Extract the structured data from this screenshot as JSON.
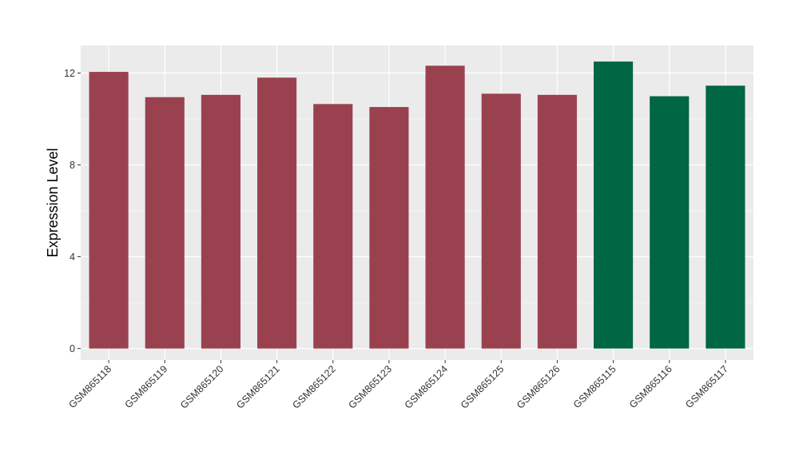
{
  "chart_data": {
    "type": "bar",
    "title": "",
    "xlabel": "",
    "ylabel": "Expression Level",
    "ylim": [
      -0.5,
      13.2
    ],
    "yticks": [
      0,
      4,
      8,
      12
    ],
    "grid": true,
    "legend": "none",
    "categories": [
      "GSM865118",
      "GSM865119",
      "GSM865120",
      "GSM865121",
      "GSM865122",
      "GSM865123",
      "GSM865124",
      "GSM865125",
      "GSM865126",
      "GSM865115",
      "GSM865116",
      "GSM865117"
    ],
    "values": [
      12.05,
      10.95,
      11.05,
      11.8,
      10.65,
      10.52,
      12.32,
      11.1,
      11.05,
      12.5,
      10.99,
      11.45
    ],
    "bar_colors": [
      "#9a4150",
      "#9a4150",
      "#9a4150",
      "#9a4150",
      "#9a4150",
      "#9a4150",
      "#9a4150",
      "#9a4150",
      "#9a4150",
      "#006644",
      "#006644",
      "#006644"
    ],
    "panel_background": "#ebebeb",
    "grid_color": "#ffffff"
  }
}
